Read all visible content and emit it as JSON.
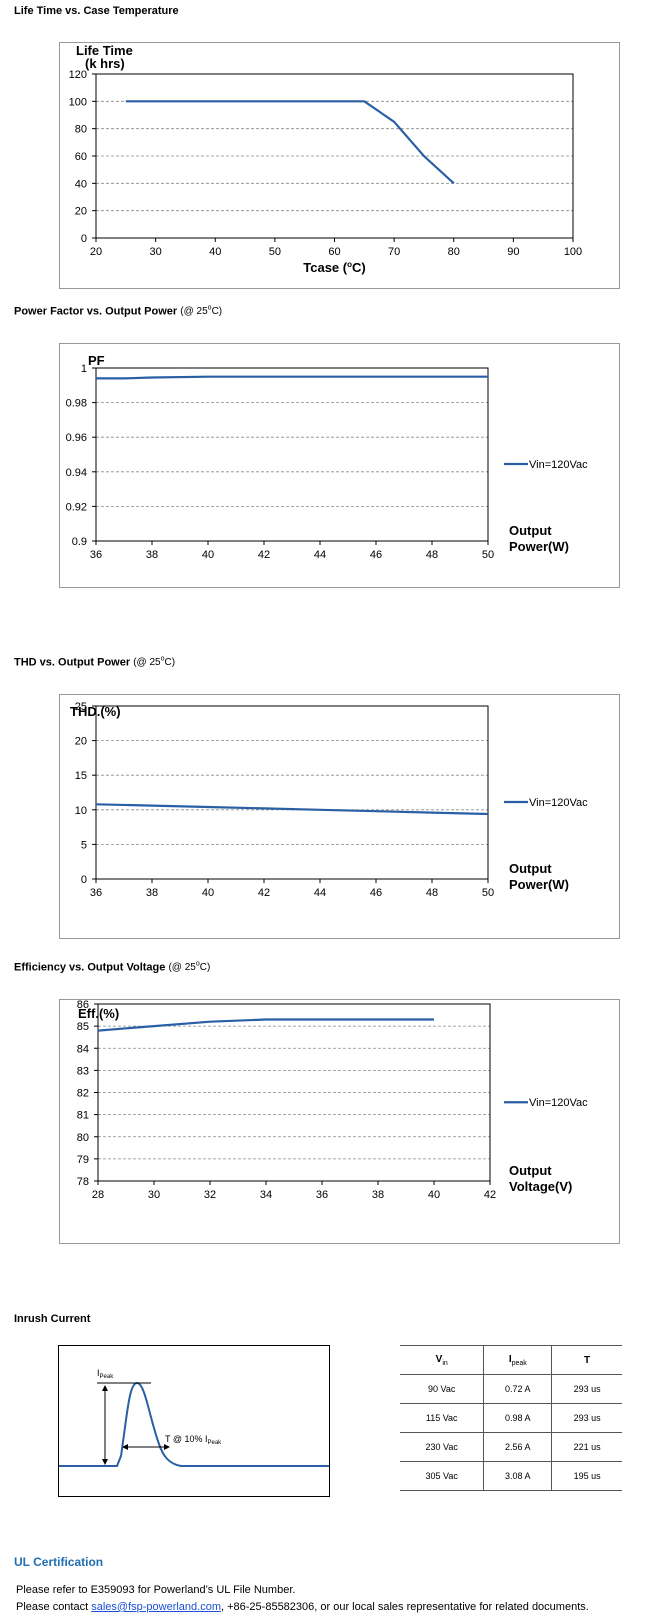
{
  "sections": {
    "life": {
      "title": "Life Time vs. Case Temperature",
      "note": ""
    },
    "pf": {
      "title": "Power Factor vs. Output Power",
      "note_prefix": "(@ 25",
      "note_sup": "o",
      "note_suffix": "C)"
    },
    "thd": {
      "title": "THD vs. Output Power",
      "note_prefix": "(@ 25",
      "note_sup": "o",
      "note_suffix": "C)"
    },
    "eff": {
      "title": "Efficiency vs. Output Voltage",
      "note_prefix": "(@ 25",
      "note_sup": "o",
      "note_suffix": "C)"
    },
    "inrush": {
      "title": "Inrush Current"
    }
  },
  "chart_data": [
    {
      "type": "line",
      "ylabel_line1": "Life Time",
      "ylabel_line2": "(k hrs)",
      "xlabel": "Tcase (oC)",
      "xlim": [
        20,
        100
      ],
      "ylim": [
        0,
        120
      ],
      "xticks": [
        20,
        30,
        40,
        50,
        60,
        70,
        80,
        90,
        100
      ],
      "yticks": [
        0,
        20,
        40,
        60,
        80,
        100,
        120
      ],
      "grid": "horizontal-dashed",
      "series": [
        {
          "x": [
            25,
            65,
            70,
            75,
            80
          ],
          "y": [
            100,
            100,
            85,
            60,
            40
          ]
        }
      ],
      "color": "#2a5fa5"
    },
    {
      "type": "line",
      "ylabel": "PF",
      "xlabel_line1": "Output",
      "xlabel_line2": "Power(W)",
      "xlim": [
        36,
        50
      ],
      "ylim": [
        0.9,
        1
      ],
      "xticks": [
        36,
        38,
        40,
        42,
        44,
        46,
        48,
        50
      ],
      "yticks": [
        0.9,
        0.92,
        0.94,
        0.96,
        0.98,
        1
      ],
      "ytick_labels": [
        "0.9",
        "0.92",
        "0.94",
        "0.96",
        "0.98",
        "1"
      ],
      "grid": "horizontal-dashed",
      "legend": "right",
      "series": [
        {
          "name": "Vin=120Vac",
          "x": [
            36,
            37,
            38,
            40,
            42,
            44,
            46,
            48,
            50
          ],
          "y": [
            0.994,
            0.994,
            0.9945,
            0.995,
            0.995,
            0.995,
            0.995,
            0.995,
            0.995
          ]
        }
      ],
      "color": "#2a5fa5"
    },
    {
      "type": "line",
      "ylabel": "THD.(%)",
      "xlabel_line1": "Output",
      "xlabel_line2": "Power(W)",
      "xlim": [
        36,
        50
      ],
      "ylim": [
        0,
        25
      ],
      "xticks": [
        36,
        38,
        40,
        42,
        44,
        46,
        48,
        50
      ],
      "yticks": [
        0,
        5,
        10,
        15,
        20,
        25
      ],
      "grid": "horizontal-dashed",
      "legend": "right",
      "series": [
        {
          "name": "Vin=120Vac",
          "x": [
            36,
            38,
            40,
            42,
            44,
            46,
            48,
            50
          ],
          "y": [
            10.8,
            10.6,
            10.4,
            10.2,
            10.0,
            9.8,
            9.6,
            9.4
          ]
        }
      ],
      "color": "#2a5fa5"
    },
    {
      "type": "line",
      "ylabel": "Eff.(%)",
      "xlabel_line1": "Output",
      "xlabel_line2": "Voltage(V)",
      "xlim": [
        28,
        42
      ],
      "ylim": [
        78,
        86
      ],
      "xticks": [
        28,
        30,
        32,
        34,
        36,
        38,
        40,
        42
      ],
      "yticks": [
        78,
        79,
        80,
        81,
        82,
        83,
        84,
        85,
        86
      ],
      "grid": "horizontal-dashed",
      "legend": "right",
      "series": [
        {
          "name": "Vin=120Vac",
          "x": [
            28,
            30,
            32,
            34,
            36,
            38,
            40
          ],
          "y": [
            84.8,
            85.0,
            85.2,
            85.3,
            85.3,
            85.3,
            85.3
          ]
        }
      ],
      "color": "#2a5fa5"
    }
  ],
  "inrush": {
    "ipeak_main": "I",
    "ipeak_sub": "Peak",
    "t_label": "T @ 10% I",
    "t_label_sub": "Peak",
    "table": {
      "headers": [
        {
          "main": "V",
          "sub": "in"
        },
        {
          "main": "I",
          "sub": "peak"
        },
        {
          "main": "T",
          "sub": ""
        }
      ],
      "rows": [
        [
          "90 Vac",
          "0.72 A",
          "293 us"
        ],
        [
          "115 Vac",
          "0.98 A",
          "293 us"
        ],
        [
          "230 Vac",
          "2.56 A",
          "221 us"
        ],
        [
          "305 Vac",
          "3.08 A",
          "195 us"
        ]
      ]
    }
  },
  "ul": {
    "title": "UL Certification",
    "line1": "Please refer to E359093 for Powerland’s UL File Number.",
    "line2_prefix": "Please contact ",
    "email": "sales@fsp-powerland.com",
    "line2_suffix": ", +86-25-85582306, or our local sales representative for related documents."
  }
}
